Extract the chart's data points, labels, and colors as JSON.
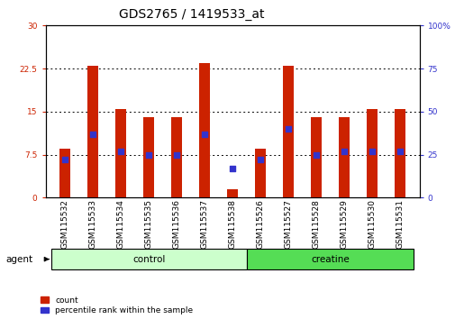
{
  "title": "GDS2765 / 1419533_at",
  "samples": [
    "GSM115532",
    "GSM115533",
    "GSM115534",
    "GSM115535",
    "GSM115536",
    "GSM115537",
    "GSM115538",
    "GSM115526",
    "GSM115527",
    "GSM115528",
    "GSM115529",
    "GSM115530",
    "GSM115531"
  ],
  "counts": [
    8.5,
    23.0,
    15.5,
    14.0,
    14.0,
    23.5,
    1.5,
    8.5,
    23.0,
    14.0,
    14.0,
    15.5,
    15.5
  ],
  "percentiles": [
    22,
    37,
    27,
    25,
    25,
    37,
    17,
    22,
    40,
    25,
    27,
    27,
    27
  ],
  "ylim_left": [
    0,
    30
  ],
  "ylim_right": [
    0,
    100
  ],
  "yticks_left": [
    0,
    7.5,
    15,
    22.5,
    30
  ],
  "yticks_right": [
    0,
    25,
    50,
    75,
    100
  ],
  "bar_color": "#cc2200",
  "dot_color": "#3333cc",
  "bg_color": "#ffffff",
  "plot_bg": "#ffffff",
  "n_control": 7,
  "n_creatine": 6,
  "control_color": "#ccffcc",
  "creatine_color": "#55dd55",
  "agent_label": "agent",
  "control_label": "control",
  "creatine_label": "creatine",
  "legend_count_label": "count",
  "legend_pct_label": "percentile rank within the sample",
  "bar_width": 0.4,
  "title_fontsize": 10,
  "tick_fontsize": 6.5,
  "label_fontsize": 7.5
}
